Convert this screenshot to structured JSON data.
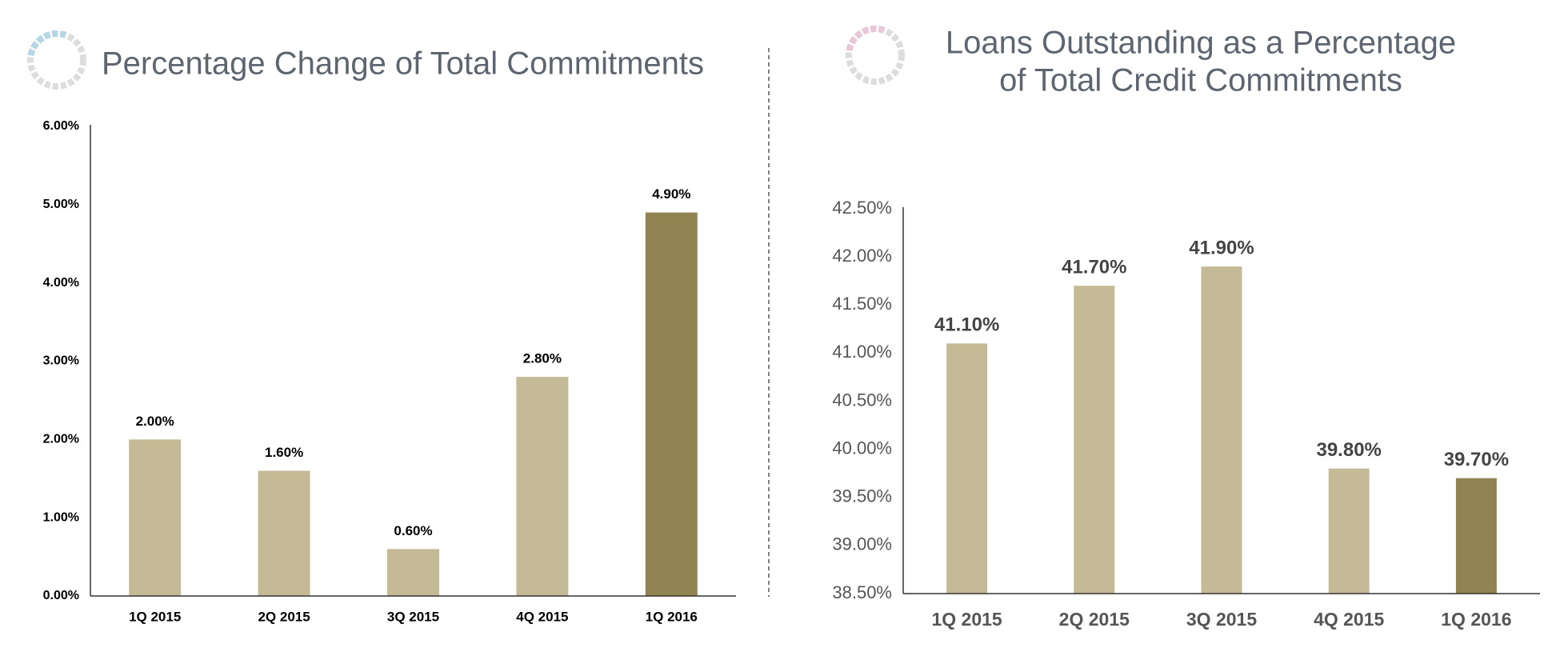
{
  "chart_data": [
    {
      "type": "bar",
      "title": "Percentage Change of Total Commitments",
      "categories": [
        "1Q 2015",
        "2Q 2015",
        "3Q 2015",
        "4Q 2015",
        "1Q 2016"
      ],
      "values": [
        2.0,
        1.6,
        0.6,
        2.8,
        4.9
      ],
      "value_labels": [
        "2.00%",
        "1.60%",
        "0.60%",
        "2.80%",
        "4.90%"
      ],
      "colors": [
        "#c4bb96",
        "#c4bb96",
        "#c4bb96",
        "#c4bb96",
        "#8f8451"
      ],
      "ylim": [
        0,
        6
      ],
      "yticks": [
        {
          "value": 0,
          "label": "0.00%"
        },
        {
          "value": 1,
          "label": "1.00%"
        },
        {
          "value": 2,
          "label": "2.00%"
        },
        {
          "value": 3,
          "label": "3.00%"
        },
        {
          "value": 4,
          "label": "4.00%"
        },
        {
          "value": 5,
          "label": "5.00%"
        },
        {
          "value": 6,
          "label": "6.00%"
        }
      ],
      "grid": false
    },
    {
      "type": "bar",
      "title": [
        "Loans Outstanding as a Percentage",
        "of Total Credit Commitments"
      ],
      "categories": [
        "1Q 2015",
        "2Q 2015",
        "3Q 2015",
        "4Q 2015",
        "1Q 2016"
      ],
      "values": [
        41.1,
        41.7,
        41.9,
        39.8,
        39.7
      ],
      "value_labels": [
        "41.10%",
        "41.70%",
        "41.90%",
        "39.80%",
        "39.70%"
      ],
      "colors": [
        "#c4bb96",
        "#c4bb96",
        "#c4bb96",
        "#c4bb96",
        "#8f8451"
      ],
      "ylim": [
        38.5,
        42.5
      ],
      "yticks": [
        {
          "value": 38.5,
          "label": "38.50%"
        },
        {
          "value": 39,
          "label": "39.00%"
        },
        {
          "value": 39.5,
          "label": "39.50%"
        },
        {
          "value": 40,
          "label": "40.00%"
        },
        {
          "value": 40.5,
          "label": "40.50%"
        },
        {
          "value": 41,
          "label": "41.00%"
        },
        {
          "value": 41.5,
          "label": "41.50%"
        },
        {
          "value": 42,
          "label": "42.00%"
        },
        {
          "value": 42.5,
          "label": "42.50%"
        }
      ],
      "grid": false
    }
  ]
}
